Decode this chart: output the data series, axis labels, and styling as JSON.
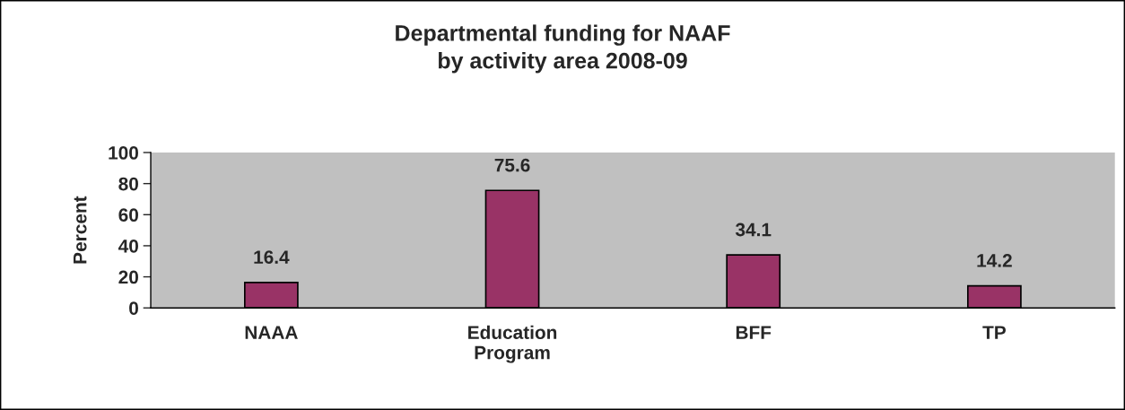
{
  "chart_data": {
    "type": "bar",
    "title": "Departmental funding for NAAF\nby activity area 2008-09",
    "ylabel": "Percent",
    "categories": [
      "NAAA",
      "Education\nProgram",
      "BFF",
      "TP"
    ],
    "values": [
      16.4,
      75.6,
      34.1,
      14.2
    ],
    "color": "#993366",
    "ylim": [
      0,
      100
    ],
    "yticks": [
      0,
      20,
      40,
      60,
      80,
      100
    ],
    "data_labels": true,
    "grid": false,
    "legend": false
  }
}
